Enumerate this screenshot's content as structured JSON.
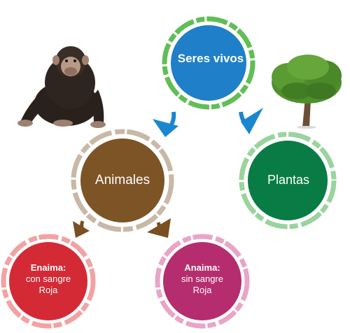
{
  "diagram": {
    "root": {
      "label": "Seres vivos",
      "color": "#1f7fc8",
      "ring_color": "#5fbf55"
    },
    "animales": {
      "label": "Animales",
      "color": "#7d5426",
      "ring_color": "#c8b8a6"
    },
    "plantas": {
      "label": "Plantas",
      "color": "#087c44",
      "ring_color": "#9ad39e"
    },
    "enaima": {
      "title": "Enaima:",
      "line1": "con sangre",
      "line2": "Roja",
      "color": "#d42a35",
      "ring_color": "#f2a2a2"
    },
    "anaima": {
      "title": "Anaima:",
      "line1": "sin sangre",
      "line2": "Roja",
      "color": "#b52d6e",
      "ring_color": "#e8a5c8"
    },
    "arrow_colors": {
      "blue": "#1a86cf",
      "brown": "#7a4f22"
    },
    "icons": [
      "chimpanzee-image",
      "tree-image"
    ]
  }
}
